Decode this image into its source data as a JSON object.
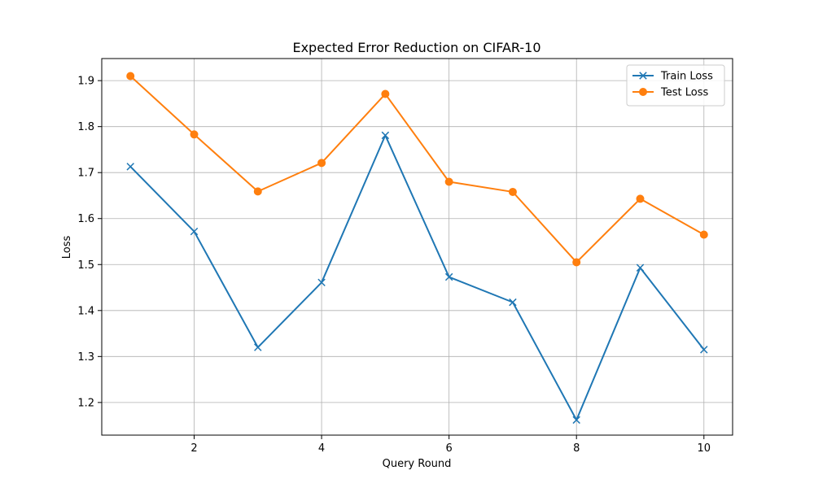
{
  "chart_data": {
    "type": "line",
    "title": "Expected Error Reduction on CIFAR-10",
    "xlabel": "Query Round",
    "ylabel": "Loss",
    "x": [
      1,
      2,
      3,
      4,
      5,
      6,
      7,
      8,
      9,
      10
    ],
    "xlim": [
      0.55,
      10.45
    ],
    "ylim": [
      1.129,
      1.948
    ],
    "xticks": [
      2,
      4,
      6,
      8,
      10
    ],
    "xtick_labels": [
      "2",
      "4",
      "6",
      "8",
      "10"
    ],
    "yticks": [
      1.2,
      1.3,
      1.4,
      1.5,
      1.6,
      1.7,
      1.8,
      1.9
    ],
    "ytick_labels": [
      "1.2",
      "1.3",
      "1.4",
      "1.5",
      "1.6",
      "1.7",
      "1.8",
      "1.9"
    ],
    "grid": true,
    "legend_position": "top-right",
    "series": [
      {
        "name": "Train Loss",
        "color": "#1f77b4",
        "marker": "x",
        "values": [
          1.713,
          1.572,
          1.32,
          1.461,
          1.781,
          1.473,
          1.418,
          1.162,
          1.493,
          1.315
        ]
      },
      {
        "name": "Test Loss",
        "color": "#ff7f0e",
        "marker": "o",
        "values": [
          1.91,
          1.783,
          1.659,
          1.721,
          1.871,
          1.68,
          1.658,
          1.505,
          1.643,
          1.565
        ]
      }
    ]
  }
}
